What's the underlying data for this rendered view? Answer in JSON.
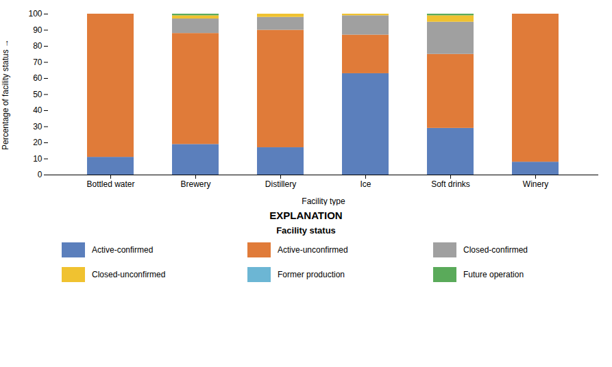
{
  "chart_data": {
    "type": "bar",
    "stacked": true,
    "title": "EXPLANATION",
    "subtitle": "Facility status",
    "xlabel": "Facility type",
    "ylabel": "Percentage of facility status",
    "categories": [
      "Bottled water",
      "Brewery",
      "Distillery",
      "Ice",
      "Soft drinks",
      "Winery"
    ],
    "series": [
      {
        "name": "Active-confirmed",
        "color": "#5b7fbc",
        "values": [
          11,
          19,
          17,
          63,
          29,
          8
        ]
      },
      {
        "name": "Active-unconfirmed",
        "color": "#e07b39",
        "values": [
          89,
          69,
          73,
          24,
          46,
          92
        ]
      },
      {
        "name": "Closed-confirmed",
        "color": "#a0a0a0",
        "values": [
          0,
          9,
          8,
          12,
          20,
          0
        ]
      },
      {
        "name": "Closed-unconfirmed",
        "color": "#f0c230",
        "values": [
          0,
          2,
          2,
          1,
          4,
          0
        ]
      },
      {
        "name": "Former production",
        "color": "#6cb6d4",
        "values": [
          0,
          0,
          0,
          0,
          0,
          0
        ]
      },
      {
        "name": "Future operation",
        "color": "#5aaa5a",
        "values": [
          0,
          1,
          0,
          0,
          1,
          0
        ]
      }
    ],
    "ylim": [
      0,
      100
    ],
    "yticks": [
      0,
      10,
      20,
      30,
      40,
      50,
      60,
      70,
      80,
      90,
      100
    ],
    "grid": false,
    "legend": "bottom"
  }
}
